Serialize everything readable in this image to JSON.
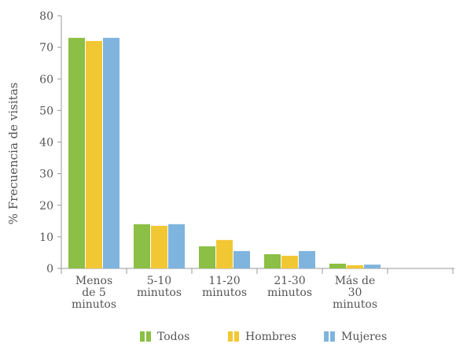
{
  "chart_data": {
    "type": "bar",
    "title": "",
    "xlabel": "",
    "ylabel": "% Frecuencia de visitas",
    "ylim": [
      0,
      80
    ],
    "yticks": [
      0,
      10,
      20,
      30,
      40,
      50,
      60,
      70,
      80
    ],
    "categories": [
      [
        "Menos",
        "de 5",
        "minutos"
      ],
      [
        "5-10",
        "minutos"
      ],
      [
        "11-20",
        "minutos"
      ],
      [
        "21-30",
        "minutos"
      ],
      [
        "Más de",
        "30",
        "minutos"
      ]
    ],
    "series": [
      {
        "name": "Todos",
        "color": "#8bbf45",
        "values": [
          73,
          14,
          7,
          4.5,
          1.5
        ]
      },
      {
        "name": "Hombres",
        "color": "#f2c734",
        "values": [
          72,
          13.5,
          9,
          4,
          1
        ]
      },
      {
        "name": "Mujeres",
        "color": "#7fb4de",
        "values": [
          73,
          14,
          5.5,
          5.5,
          1.2
        ]
      }
    ],
    "grid": false,
    "legend_position": "bottom"
  }
}
